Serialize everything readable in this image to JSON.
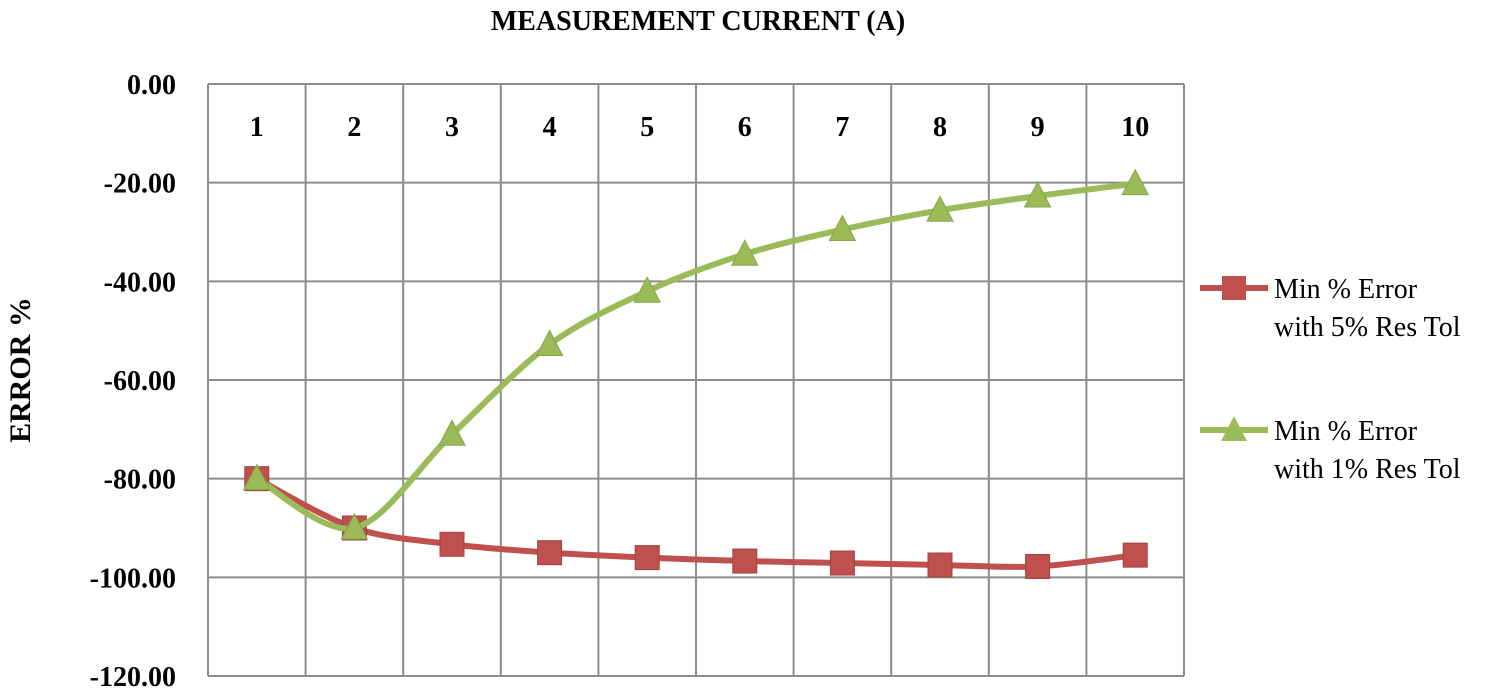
{
  "chart_data": {
    "type": "line",
    "title": "",
    "xlabel": "MEASUREMENT CURRENT (A)",
    "ylabel": "ERROR  %",
    "x": [
      1,
      2,
      3,
      4,
      5,
      6,
      7,
      8,
      9,
      10
    ],
    "x_tick_labels": [
      "1",
      "2",
      "3",
      "4",
      "5",
      "6",
      "7",
      "8",
      "9",
      "10"
    ],
    "x_axis_position": "top",
    "ylim": [
      -120,
      0
    ],
    "y_ticks": [
      0,
      -20,
      -40,
      -60,
      -80,
      -100,
      -120
    ],
    "y_tick_labels": [
      "0.00",
      "-20.00",
      "-40.00",
      "-60.00",
      "-80.00",
      "-100.00",
      "-120.00"
    ],
    "grid": true,
    "legend_position": "right",
    "series": [
      {
        "name_lines": [
          "Min % Error",
          "with 5% Res Tol"
        ],
        "color": "#c0504d",
        "marker": "square",
        "values": [
          -80,
          -90,
          -93.3,
          -95,
          -96,
          -96.7,
          -97.1,
          -97.5,
          -97.8,
          -95.5
        ]
      },
      {
        "name_lines": [
          "Min % Error",
          "with 1% Res Tol"
        ],
        "color": "#9bbb59",
        "marker": "triangle",
        "values": [
          -80,
          -90,
          -71,
          -52.8,
          -42,
          -34.5,
          -29.5,
          -25.6,
          -22.7,
          -20.2
        ]
      }
    ]
  }
}
